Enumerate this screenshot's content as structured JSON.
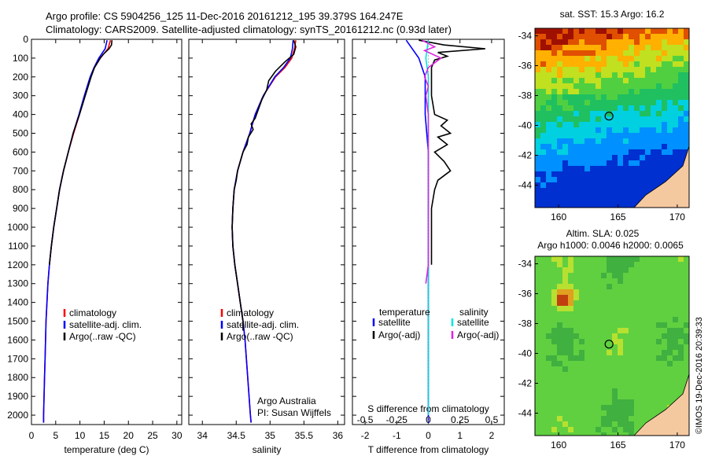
{
  "header": {
    "line1": "Argo profile: CS 5904256_125 11-Dec-2016 20161212_195 39.379S 164.247E",
    "line2": "Climatology: CARS2009. Satellite-adjusted climatology: synTS_20161212.nc (0.93d later)"
  },
  "colors": {
    "climatology": "#ff0000",
    "satellite": "#0000ff",
    "argo": "#000000",
    "sal_satellite": "#00e5e5",
    "sal_argo": "#e020e0",
    "land": "#f5c9a0"
  },
  "chart_data": [
    {
      "type": "line",
      "name_key": "temperature",
      "xlabel": "temperature (deg C)",
      "xlim": [
        0,
        31
      ],
      "xticks": [
        0,
        5,
        10,
        15,
        20,
        25,
        30
      ],
      "ylim": [
        2050,
        0
      ],
      "yticks": [
        0,
        100,
        200,
        300,
        400,
        500,
        600,
        700,
        800,
        900,
        1000,
        1100,
        1200,
        1300,
        1400,
        1500,
        1600,
        1700,
        1800,
        1900,
        2000
      ],
      "legend": [
        "climatology",
        "satellite-adj. clim.",
        "Argo(..raw -QC)"
      ],
      "series": [
        {
          "name": "climatology",
          "depth": [
            5,
            50,
            100,
            150,
            200,
            300,
            400,
            500,
            600,
            700,
            800,
            900,
            1000,
            1100,
            1200,
            1300,
            1400,
            1500,
            1600,
            1700,
            1800,
            1900,
            2000,
            2040
          ],
          "values": [
            16.3,
            15.8,
            14.2,
            13.0,
            12.2,
            11.0,
            9.9,
            8.7,
            7.6,
            6.6,
            5.8,
            5.2,
            4.6,
            4.1,
            3.7,
            3.4,
            3.2,
            3.0,
            2.9,
            2.8,
            2.7,
            2.6,
            2.5,
            2.5
          ]
        },
        {
          "name": "satellite-adj. clim.",
          "depth": [
            5,
            50,
            100,
            150,
            200,
            300,
            400,
            500,
            600,
            700,
            800,
            900,
            1000,
            1100,
            1200,
            1300,
            1400,
            1500,
            1600,
            1700,
            1800,
            1900,
            2000,
            2040
          ],
          "values": [
            15.6,
            15.2,
            13.9,
            12.9,
            12.1,
            10.9,
            9.8,
            8.6,
            7.6,
            6.6,
            5.8,
            5.2,
            4.6,
            4.1,
            3.7,
            3.4,
            3.2,
            3.0,
            2.9,
            2.8,
            2.7,
            2.6,
            2.5,
            2.5
          ]
        },
        {
          "name": "Argo(..raw -QC)",
          "depth": [
            5,
            30,
            50,
            80,
            100,
            150,
            200,
            300,
            400,
            500,
            600,
            700,
            800,
            900,
            1000,
            1100,
            1200
          ],
          "values": [
            16.6,
            16.5,
            16.0,
            14.8,
            14.2,
            13.0,
            12.3,
            11.1,
            9.9,
            8.6,
            7.6,
            6.6,
            5.8,
            5.2,
            4.6,
            4.1,
            3.7
          ]
        }
      ]
    },
    {
      "type": "line",
      "name_key": "salinity",
      "xlabel": "salinity",
      "xlim": [
        33.8,
        36.1
      ],
      "xticks": [
        34,
        34.5,
        35,
        35.5,
        36
      ],
      "xticklabels": [
        "34",
        "34.5",
        "35",
        "35.5",
        "36"
      ],
      "ylim": [
        2050,
        0
      ],
      "legend": [
        "climatology",
        "satellite-adj. clim.",
        "Argo(..raw -QC)"
      ],
      "annotation": [
        "Argo Australia",
        "PI: Susan Wijffels"
      ],
      "series": [
        {
          "name": "climatology",
          "depth": [
            5,
            50,
            100,
            150,
            200,
            300,
            400,
            450,
            500,
            600,
            700,
            800,
            900,
            1000,
            1100,
            1200,
            1300,
            1400,
            1500,
            1600,
            1700,
            1800,
            1900,
            2000,
            2040
          ],
          "values": [
            35.38,
            35.36,
            35.32,
            35.22,
            35.08,
            34.9,
            34.78,
            34.74,
            34.7,
            34.6,
            34.52,
            34.47,
            34.45,
            34.44,
            34.45,
            34.48,
            34.52,
            34.56,
            34.6,
            34.63,
            34.65,
            34.67,
            34.69,
            34.71,
            34.72
          ]
        },
        {
          "name": "satellite-adj. clim.",
          "depth": [
            5,
            50,
            100,
            150,
            200,
            300,
            400,
            450,
            500,
            600,
            700,
            800,
            900,
            1000,
            1100,
            1200,
            1300,
            1400,
            1500,
            1600,
            1700,
            1800,
            1900,
            2000,
            2040
          ],
          "values": [
            35.34,
            35.33,
            35.3,
            35.2,
            35.07,
            34.9,
            34.78,
            34.74,
            34.7,
            34.6,
            34.52,
            34.47,
            34.45,
            34.44,
            34.45,
            34.48,
            34.52,
            34.56,
            34.6,
            34.63,
            34.65,
            34.67,
            34.69,
            34.71,
            34.72
          ]
        },
        {
          "name": "Argo(..raw -QC)",
          "depth": [
            5,
            40,
            80,
            120,
            170,
            220,
            270,
            320,
            380,
            420,
            450,
            480,
            520,
            560,
            600,
            650,
            700,
            750,
            800,
            900,
            1000,
            1100,
            1200,
            1300,
            1400,
            1500,
            1550
          ],
          "values": [
            35.35,
            35.38,
            35.35,
            35.22,
            35.08,
            34.98,
            34.95,
            34.88,
            34.82,
            34.78,
            34.72,
            34.75,
            34.68,
            34.66,
            34.6,
            34.56,
            34.52,
            34.5,
            34.47,
            34.45,
            34.44,
            34.45,
            34.48,
            34.52,
            34.56,
            34.6,
            34.6
          ]
        }
      ]
    },
    {
      "type": "line",
      "name_key": "difference",
      "xlabel": "T difference from climatology",
      "xlabel_top": "S difference from climatology",
      "xlim": [
        -2.4,
        2.4
      ],
      "xticks": [
        -2,
        -1,
        0,
        1,
        2
      ],
      "xticks_top": [
        -0.5,
        -0.25,
        0,
        0.25,
        0.5
      ],
      "ylim": [
        2050,
        0
      ],
      "legend_headers": [
        "temperature",
        "salinity"
      ],
      "legend": [
        "satellite",
        "Argo(-adj)",
        "satellite",
        "Argo(-adj)"
      ],
      "series": [
        {
          "name": "temperature satellite",
          "depth": [
            5,
            100,
            200,
            400,
            600,
            800,
            1000,
            1200,
            1500,
            2000,
            2040
          ],
          "values": [
            -0.7,
            -0.3,
            -0.1,
            -0.1,
            0,
            0,
            0,
            0,
            0,
            0,
            0
          ]
        },
        {
          "name": "temperature Argo(-adj)",
          "depth": [
            5,
            30,
            50,
            70,
            90,
            110,
            150,
            200,
            300,
            400,
            430,
            460,
            500,
            520,
            560,
            600,
            650,
            700,
            750,
            800,
            900,
            1000,
            1100,
            1200
          ],
          "values": [
            -0.3,
            0.5,
            1.8,
            0.3,
            0.6,
            0.2,
            0.1,
            0.1,
            0.1,
            0.2,
            0.6,
            0.4,
            0.7,
            0.3,
            0.6,
            0.2,
            0.5,
            0.7,
            0.3,
            0.2,
            0.1,
            0.1,
            0.1,
            0.1
          ]
        },
        {
          "name": "salinity satellite",
          "depth": [
            5,
            100,
            200,
            400,
            600,
            800,
            1000,
            1200,
            1500,
            2000
          ],
          "values": [
            0.0,
            -0.02,
            0.0,
            0.0,
            0.0,
            0.0,
            0.0,
            0.0,
            0.0,
            0.0
          ]
        },
        {
          "name": "salinity Argo(-adj)",
          "depth": [
            5,
            40,
            60,
            100,
            150,
            200,
            250,
            300,
            400,
            500,
            600,
            800,
            1000,
            1200,
            1300
          ],
          "values": [
            -0.05,
            0.05,
            -0.03,
            0.1,
            0.0,
            -0.03,
            0.0,
            -0.02,
            0.0,
            0.0,
            0.0,
            0.0,
            0.0,
            0.0,
            -0.02
          ]
        }
      ]
    },
    {
      "type": "heatmap",
      "name_key": "sst_map",
      "title": "sat. SST: 15.3 Argo: 16.2",
      "xlim": [
        158,
        171
      ],
      "ylim": [
        -45.5,
        -33.5
      ],
      "xticks": [
        160,
        165,
        170
      ],
      "yticks": [
        -34,
        -36,
        -38,
        -40,
        -42,
        -44
      ],
      "marker": {
        "lon": 164.247,
        "lat": -39.379
      }
    },
    {
      "type": "heatmap",
      "name_key": "sla_map",
      "title": [
        "Altim. SLA: 0.025",
        "Argo h1000: 0.0046 h2000: 0.0065"
      ],
      "xlim": [
        158,
        171
      ],
      "ylim": [
        -45.5,
        -33.5
      ],
      "xticks": [
        160,
        165,
        170
      ],
      "yticks": [
        -34,
        -36,
        -38,
        -40,
        -42,
        -44
      ],
      "marker": {
        "lon": 164.247,
        "lat": -39.379
      }
    }
  ],
  "credit": "©IMOS 19-Dec-2016 20:39:33"
}
